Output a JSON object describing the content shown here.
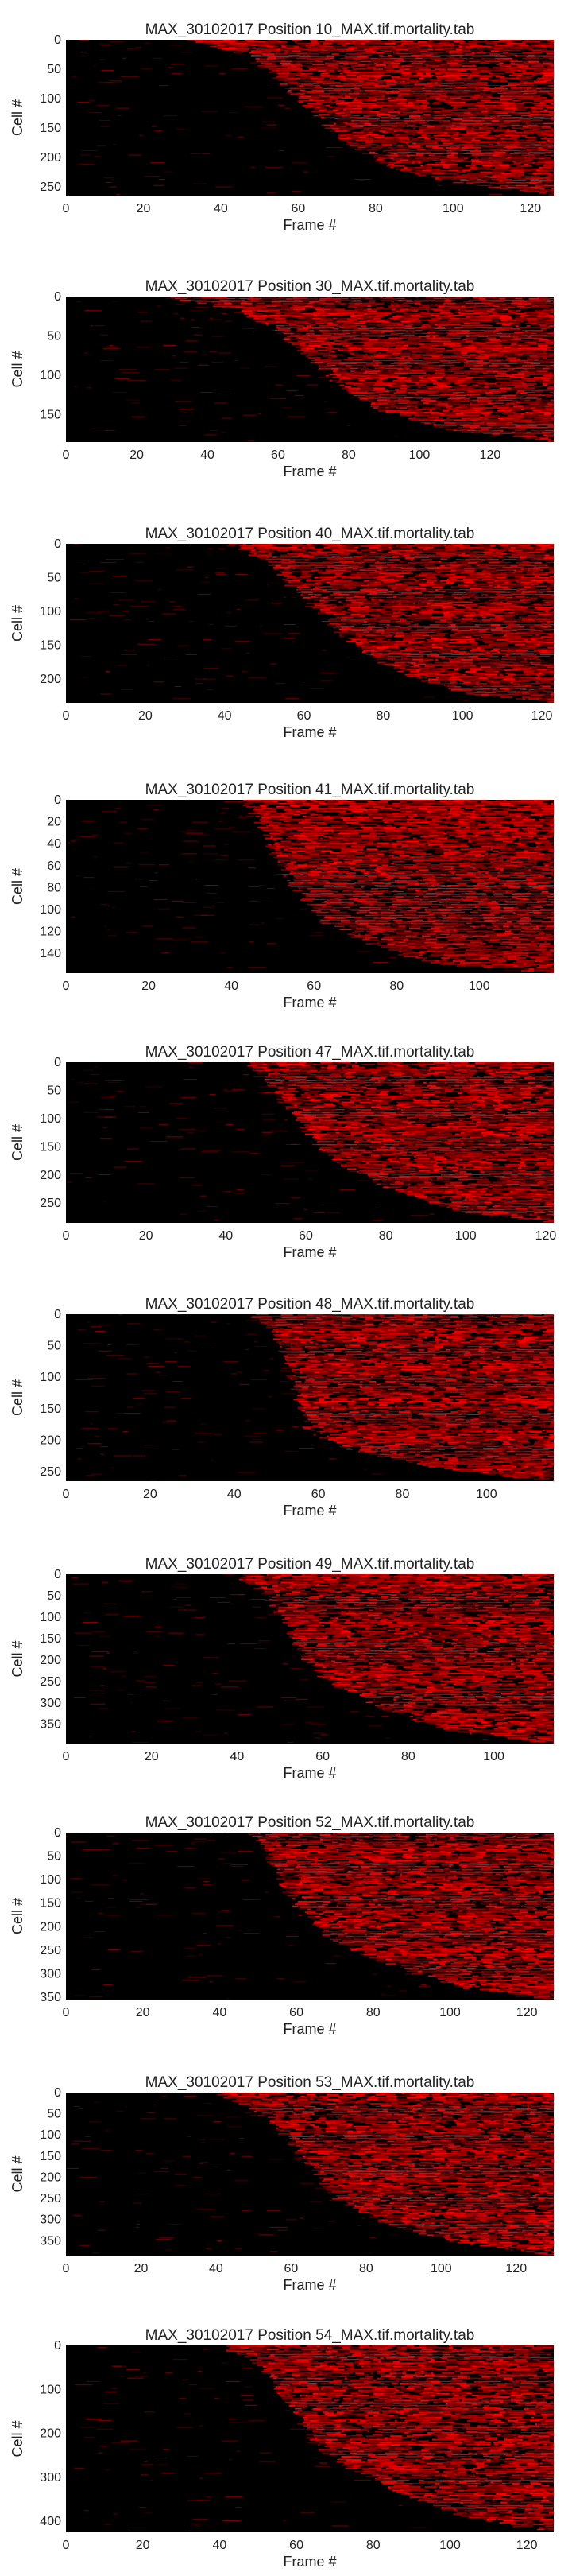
{
  "chart_data": [
    {
      "type": "heatmap",
      "title": "MAX_30102017 Position 10_MAX.tif.mortality.tab",
      "xlabel": "Frame #",
      "ylabel": "Cell #",
      "xlim": [
        0,
        126
      ],
      "ylim": [
        0,
        265
      ],
      "xticks": [
        0,
        20,
        40,
        60,
        80,
        100,
        120
      ],
      "yticks": [
        0,
        50,
        100,
        150,
        200,
        250
      ],
      "onset_curve": {
        "cell_fraction": [
          0,
          0.1,
          0.25,
          0.45,
          0.65,
          0.8,
          0.9,
          1
        ],
        "frame": [
          32,
          47,
          55,
          63,
          72,
          82,
          96,
          126
        ]
      },
      "colormap": [
        "#000000",
        "#ff0000"
      ]
    },
    {
      "type": "heatmap",
      "title": "MAX_30102017 Position 30_MAX.tif.mortality.tab",
      "xlabel": "Frame #",
      "ylabel": "Cell #",
      "xlim": [
        0,
        138
      ],
      "ylim": [
        0,
        185
      ],
      "xticks": [
        0,
        20,
        40,
        60,
        80,
        100,
        120
      ],
      "yticks": [
        0,
        50,
        100,
        150
      ],
      "onset_curve": {
        "cell_fraction": [
          0,
          0.08,
          0.2,
          0.4,
          0.6,
          0.8,
          0.92,
          1
        ],
        "frame": [
          28,
          45,
          58,
          68,
          76,
          90,
          110,
          138
        ]
      },
      "colormap": [
        "#000000",
        "#ff0000"
      ]
    },
    {
      "type": "heatmap",
      "title": "MAX_30102017 Position 40_MAX.tif.mortality.tab",
      "xlabel": "Frame #",
      "ylabel": "Cell #",
      "xlim": [
        0,
        123
      ],
      "ylim": [
        0,
        235
      ],
      "xticks": [
        0,
        20,
        40,
        60,
        80,
        100,
        120
      ],
      "yticks": [
        0,
        50,
        100,
        150,
        200
      ],
      "onset_curve": {
        "cell_fraction": [
          0,
          0.1,
          0.3,
          0.5,
          0.7,
          0.85,
          0.95,
          1
        ],
        "frame": [
          40,
          50,
          58,
          66,
          76,
          88,
          103,
          123
        ]
      },
      "colormap": [
        "#000000",
        "#ff0000"
      ]
    },
    {
      "type": "heatmap",
      "title": "MAX_30102017 Position 41_MAX.tif.mortality.tab",
      "xlabel": "Frame #",
      "ylabel": "Cell #",
      "xlim": [
        0,
        118
      ],
      "ylim": [
        0,
        158
      ],
      "xticks": [
        0,
        20,
        40,
        60,
        80,
        100
      ],
      "yticks": [
        0,
        20,
        40,
        60,
        80,
        100,
        120,
        140
      ],
      "onset_curve": {
        "cell_fraction": [
          0,
          0.1,
          0.3,
          0.5,
          0.7,
          0.85,
          0.95,
          1
        ],
        "frame": [
          42,
          46,
          50,
          55,
          62,
          75,
          90,
          118
        ]
      },
      "colormap": [
        "#000000",
        "#ff0000"
      ]
    },
    {
      "type": "heatmap",
      "title": "MAX_30102017 Position 47_MAX.tif.mortality.tab",
      "xlabel": "Frame #",
      "ylabel": "Cell #",
      "xlim": [
        0,
        122
      ],
      "ylim": [
        0,
        285
      ],
      "xticks": [
        0,
        20,
        40,
        60,
        80,
        100,
        120
      ],
      "yticks": [
        0,
        50,
        100,
        150,
        200,
        250
      ],
      "onset_curve": {
        "cell_fraction": [
          0,
          0.1,
          0.3,
          0.5,
          0.65,
          0.8,
          0.93,
          1
        ],
        "frame": [
          44,
          50,
          56,
          62,
          70,
          82,
          98,
          122
        ]
      },
      "colormap": [
        "#000000",
        "#ff0000"
      ]
    },
    {
      "type": "heatmap",
      "title": "MAX_30102017 Position 48_MAX.tif.mortality.tab",
      "xlabel": "Frame #",
      "ylabel": "Cell #",
      "xlim": [
        0,
        116
      ],
      "ylim": [
        0,
        265
      ],
      "xticks": [
        0,
        20,
        40,
        60,
        80,
        100
      ],
      "yticks": [
        0,
        50,
        100,
        150,
        200,
        250
      ],
      "onset_curve": {
        "cell_fraction": [
          0,
          0.1,
          0.3,
          0.5,
          0.7,
          0.82,
          0.93,
          1
        ],
        "frame": [
          44,
          50,
          53,
          55,
          58,
          68,
          90,
          116
        ]
      },
      "colormap": [
        "#000000",
        "#ff0000"
      ]
    },
    {
      "type": "heatmap",
      "title": "MAX_30102017 Position 49_MAX.tif.mortality.tab",
      "xlabel": "Frame #",
      "ylabel": "Cell #",
      "xlim": [
        0,
        114
      ],
      "ylim": [
        0,
        395
      ],
      "xticks": [
        0,
        20,
        40,
        60,
        80,
        100
      ],
      "yticks": [
        0,
        50,
        100,
        150,
        200,
        250,
        300,
        350
      ],
      "onset_curve": {
        "cell_fraction": [
          0,
          0.1,
          0.3,
          0.5,
          0.65,
          0.8,
          0.92,
          1
        ],
        "frame": [
          40,
          46,
          52,
          56,
          62,
          75,
          88,
          114
        ]
      },
      "colormap": [
        "#000000",
        "#ff0000"
      ]
    },
    {
      "type": "heatmap",
      "title": "MAX_30102017 Position 52_MAX.tif.mortality.tab",
      "xlabel": "Frame #",
      "ylabel": "Cell #",
      "xlim": [
        0,
        127
      ],
      "ylim": [
        0,
        355
      ],
      "xticks": [
        0,
        20,
        40,
        60,
        80,
        100,
        120
      ],
      "yticks": [
        0,
        50,
        100,
        150,
        200,
        250,
        300,
        350
      ],
      "onset_curve": {
        "cell_fraction": [
          0,
          0.1,
          0.3,
          0.5,
          0.65,
          0.8,
          0.93,
          1
        ],
        "frame": [
          46,
          52,
          56,
          62,
          70,
          85,
          104,
          127
        ]
      },
      "colormap": [
        "#000000",
        "#ff0000"
      ]
    },
    {
      "type": "heatmap",
      "title": "MAX_30102017 Position 53_MAX.tif.mortality.tab",
      "xlabel": "Frame #",
      "ylabel": "Cell #",
      "xlim": [
        0,
        130
      ],
      "ylim": [
        0,
        385
      ],
      "xticks": [
        0,
        20,
        40,
        60,
        80,
        100,
        120
      ],
      "yticks": [
        0,
        50,
        100,
        150,
        200,
        250,
        300,
        350
      ],
      "onset_curve": {
        "cell_fraction": [
          0,
          0.1,
          0.3,
          0.5,
          0.65,
          0.8,
          0.92,
          1
        ],
        "frame": [
          40,
          50,
          60,
          66,
          72,
          85,
          104,
          130
        ]
      },
      "colormap": [
        "#000000",
        "#ff0000"
      ]
    },
    {
      "type": "heatmap",
      "title": "MAX_30102017 Position 54_MAX.tif.mortality.tab",
      "xlabel": "Frame #",
      "ylabel": "Cell #",
      "xlim": [
        0,
        127
      ],
      "ylim": [
        0,
        425
      ],
      "xticks": [
        0,
        20,
        40,
        60,
        80,
        100,
        120
      ],
      "yticks": [
        0,
        100,
        200,
        300,
        400
      ],
      "onset_curve": {
        "cell_fraction": [
          0,
          0.1,
          0.3,
          0.5,
          0.65,
          0.8,
          0.92,
          1
        ],
        "frame": [
          40,
          50,
          58,
          64,
          72,
          88,
          104,
          127
        ]
      },
      "colormap": [
        "#000000",
        "#ff0000"
      ]
    }
  ]
}
